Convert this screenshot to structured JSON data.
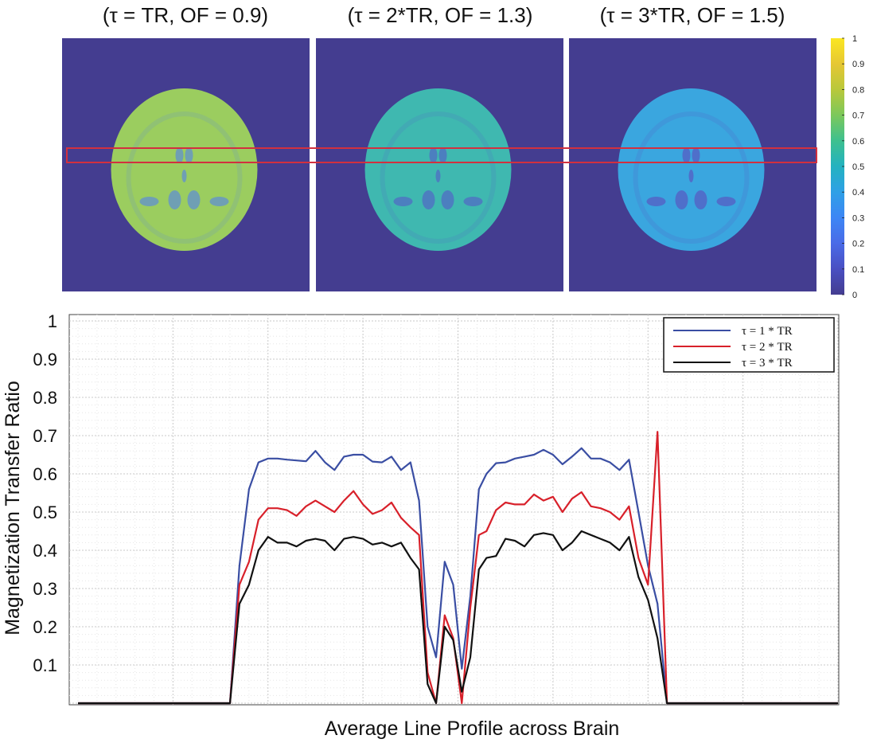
{
  "chart_data": [
    {
      "type": "heatmap",
      "panels": [
        {
          "title": "(τ = TR, OF = 0.9)",
          "brain_color": "#9bcd5f",
          "ventricle_color": "#6f9fb4"
        },
        {
          "title": "(τ = 2*TR, OF = 1.3)",
          "brain_color": "#3fb8b0",
          "ventricle_color": "#4c7fbf"
        },
        {
          "title": "(τ = 3*TR, OF = 1.5)",
          "brain_color": "#3aa6df",
          "ventricle_color": "#4f6fca"
        }
      ],
      "background_color": "#443d90",
      "roi_color": "#d2303f",
      "colorbar": {
        "range": [
          0,
          1
        ],
        "ticks": [
          "0",
          "0.1",
          "0.2",
          "0.3",
          "0.4",
          "0.5",
          "0.6",
          "0.7",
          "0.8",
          "0.9",
          "1"
        ],
        "colors": [
          "#fbe722",
          "#e6c733",
          "#b9c83b",
          "#7cc85b",
          "#3ec08f",
          "#23b2c0",
          "#2ea0e6",
          "#3d86f5",
          "#4a6be7",
          "#4a4fc2",
          "#443d90"
        ]
      }
    },
    {
      "type": "line",
      "xlabel": "Average Line Profile across Brain",
      "ylabel": "Magnetization Transfer Ratio",
      "ylim": [
        0,
        1
      ],
      "yticks": [
        "0.1",
        "0.2",
        "0.3",
        "0.4",
        "0.5",
        "0.6",
        "0.7",
        "0.8",
        "0.9",
        "1"
      ],
      "xlim": [
        0,
        80
      ],
      "grid": true,
      "legend_position": "top-right",
      "series": [
        {
          "name": "τ = 1 * TR",
          "color": "#3a4ea3",
          "x": [
            0,
            16,
            17,
            18,
            19,
            20,
            21,
            22,
            23,
            24,
            25,
            26,
            27,
            28,
            29,
            30,
            31,
            32,
            33,
            34,
            35,
            35.9,
            36.8,
            37.7,
            38.6,
            39.5,
            40.4,
            41.3,
            42.2,
            43,
            44,
            45,
            46,
            47,
            48,
            49,
            50,
            51,
            52,
            53,
            54,
            55,
            56,
            57,
            58,
            59,
            60,
            61,
            62,
            63,
            64,
            65,
            66,
            67,
            80
          ],
          "y": [
            0,
            0,
            0.36,
            0.56,
            0.63,
            0.64,
            0.64,
            0.637,
            0.635,
            0.633,
            0.66,
            0.63,
            0.61,
            0.645,
            0.65,
            0.65,
            0.632,
            0.63,
            0.645,
            0.61,
            0.63,
            0.53,
            0.2,
            0.12,
            0.37,
            0.31,
            0.09,
            0.28,
            0.56,
            0.6,
            0.628,
            0.63,
            0.64,
            0.645,
            0.65,
            0.663,
            0.65,
            0.625,
            0.645,
            0.667,
            0.64,
            0.64,
            0.63,
            0.61,
            0.637,
            0.5,
            0.36,
            0.26,
            0,
            0,
            0,
            0,
            0,
            0,
            0
          ]
        },
        {
          "name": "τ = 2 * TR",
          "color": "#d8202a",
          "x": [
            0,
            16,
            17,
            18,
            19,
            20,
            21,
            22,
            23,
            24,
            25,
            26,
            27,
            28,
            29,
            30,
            31,
            32,
            33,
            34,
            35,
            35.9,
            36.8,
            37.7,
            38.6,
            39.5,
            40.4,
            41.3,
            42.2,
            43,
            44,
            45,
            46,
            47,
            48,
            49,
            50,
            51,
            52,
            53,
            54,
            55,
            56,
            57,
            58,
            59,
            60,
            61,
            62,
            63,
            64,
            65,
            66,
            67,
            80
          ],
          "y": [
            0,
            0,
            0.31,
            0.37,
            0.48,
            0.51,
            0.51,
            0.505,
            0.49,
            0.515,
            0.53,
            0.515,
            0.5,
            0.53,
            0.555,
            0.52,
            0.495,
            0.505,
            0.525,
            0.485,
            0.46,
            0.44,
            0.08,
            0.0,
            0.23,
            0.17,
            0.0,
            0.25,
            0.44,
            0.45,
            0.505,
            0.525,
            0.52,
            0.52,
            0.546,
            0.53,
            0.54,
            0.5,
            0.535,
            0.552,
            0.515,
            0.51,
            0.5,
            0.48,
            0.515,
            0.38,
            0.31,
            0.71,
            0,
            0,
            0,
            0,
            0,
            0,
            0
          ]
        },
        {
          "name": "τ = 3 * TR",
          "color": "#111111",
          "x": [
            0,
            16,
            17,
            18,
            19,
            20,
            21,
            22,
            23,
            24,
            25,
            26,
            27,
            28,
            29,
            30,
            31,
            32,
            33,
            34,
            35,
            35.9,
            36.8,
            37.7,
            38.6,
            39.5,
            40.4,
            41.3,
            42.2,
            43,
            44,
            45,
            46,
            47,
            48,
            49,
            50,
            51,
            52,
            53,
            54,
            55,
            56,
            57,
            58,
            59,
            60,
            61,
            62,
            63,
            64,
            65,
            66,
            67,
            80
          ],
          "y": [
            0,
            0,
            0.26,
            0.31,
            0.4,
            0.435,
            0.42,
            0.42,
            0.41,
            0.425,
            0.43,
            0.425,
            0.4,
            0.43,
            0.435,
            0.43,
            0.415,
            0.42,
            0.41,
            0.42,
            0.38,
            0.35,
            0.05,
            0.0,
            0.2,
            0.165,
            0.03,
            0.12,
            0.35,
            0.38,
            0.385,
            0.43,
            0.425,
            0.41,
            0.44,
            0.445,
            0.44,
            0.4,
            0.42,
            0.45,
            0.44,
            0.43,
            0.42,
            0.4,
            0.435,
            0.33,
            0.27,
            0.17,
            0,
            0,
            0,
            0,
            0,
            0,
            0
          ]
        }
      ]
    }
  ]
}
